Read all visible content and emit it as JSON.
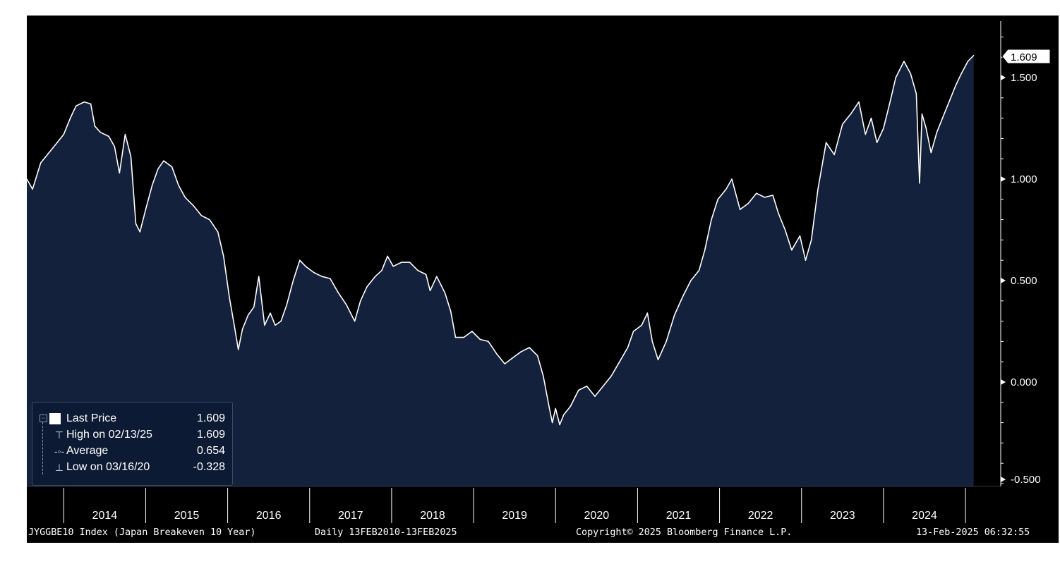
{
  "chart_data": {
    "type": "area",
    "x_labels": [
      "2014",
      "2015",
      "2016",
      "2017",
      "2018",
      "2019",
      "2020",
      "2021",
      "2022",
      "2023",
      "2024"
    ],
    "y_ticks": [
      "1.500",
      "1.000",
      "0.500",
      "0.000",
      "-0.500"
    ],
    "y_tick_values": [
      1.5,
      1.0,
      0.5,
      0.0,
      -0.5
    ],
    "ylim": [
      -0.5,
      1.8
    ],
    "xlim": [
      2013.55,
      2025.12
    ],
    "last_price_tag": "1.609",
    "points": [
      [
        2013.55,
        1.0
      ],
      [
        2013.62,
        0.95
      ],
      [
        2013.72,
        1.08
      ],
      [
        2013.82,
        1.13
      ],
      [
        2013.92,
        1.18
      ],
      [
        2014.0,
        1.22
      ],
      [
        2014.08,
        1.3
      ],
      [
        2014.15,
        1.36
      ],
      [
        2014.25,
        1.38
      ],
      [
        2014.33,
        1.37
      ],
      [
        2014.38,
        1.26
      ],
      [
        2014.45,
        1.23
      ],
      [
        2014.55,
        1.21
      ],
      [
        2014.62,
        1.16
      ],
      [
        2014.68,
        1.03
      ],
      [
        2014.75,
        1.22
      ],
      [
        2014.82,
        1.11
      ],
      [
        2014.88,
        0.78
      ],
      [
        2014.93,
        0.74
      ],
      [
        2015.0,
        0.85
      ],
      [
        2015.08,
        0.97
      ],
      [
        2015.15,
        1.05
      ],
      [
        2015.22,
        1.09
      ],
      [
        2015.32,
        1.06
      ],
      [
        2015.4,
        0.97
      ],
      [
        2015.48,
        0.91
      ],
      [
        2015.58,
        0.87
      ],
      [
        2015.68,
        0.82
      ],
      [
        2015.78,
        0.8
      ],
      [
        2015.88,
        0.74
      ],
      [
        2015.95,
        0.62
      ],
      [
        2016.02,
        0.42
      ],
      [
        2016.08,
        0.28
      ],
      [
        2016.13,
        0.16
      ],
      [
        2016.18,
        0.26
      ],
      [
        2016.25,
        0.33
      ],
      [
        2016.32,
        0.37
      ],
      [
        2016.38,
        0.52
      ],
      [
        2016.45,
        0.28
      ],
      [
        2016.52,
        0.34
      ],
      [
        2016.58,
        0.28
      ],
      [
        2016.65,
        0.3
      ],
      [
        2016.72,
        0.38
      ],
      [
        2016.8,
        0.5
      ],
      [
        2016.88,
        0.6
      ],
      [
        2016.95,
        0.57
      ],
      [
        2017.05,
        0.54
      ],
      [
        2017.15,
        0.52
      ],
      [
        2017.25,
        0.51
      ],
      [
        2017.35,
        0.44
      ],
      [
        2017.45,
        0.38
      ],
      [
        2017.55,
        0.3
      ],
      [
        2017.62,
        0.4
      ],
      [
        2017.7,
        0.47
      ],
      [
        2017.8,
        0.52
      ],
      [
        2017.88,
        0.55
      ],
      [
        2017.95,
        0.62
      ],
      [
        2018.02,
        0.57
      ],
      [
        2018.12,
        0.59
      ],
      [
        2018.22,
        0.59
      ],
      [
        2018.32,
        0.55
      ],
      [
        2018.42,
        0.53
      ],
      [
        2018.47,
        0.45
      ],
      [
        2018.55,
        0.52
      ],
      [
        2018.65,
        0.44
      ],
      [
        2018.72,
        0.35
      ],
      [
        2018.78,
        0.22
      ],
      [
        2018.88,
        0.22
      ],
      [
        2018.98,
        0.25
      ],
      [
        2019.08,
        0.21
      ],
      [
        2019.18,
        0.2
      ],
      [
        2019.28,
        0.14
      ],
      [
        2019.38,
        0.09
      ],
      [
        2019.48,
        0.12
      ],
      [
        2019.58,
        0.15
      ],
      [
        2019.68,
        0.17
      ],
      [
        2019.78,
        0.13
      ],
      [
        2019.85,
        0.03
      ],
      [
        2019.92,
        -0.12
      ],
      [
        2019.96,
        -0.2
      ],
      [
        2020.0,
        -0.13
      ],
      [
        2020.05,
        -0.21
      ],
      [
        2020.1,
        -0.16
      ],
      [
        2020.18,
        -0.12
      ],
      [
        2020.28,
        -0.04
      ],
      [
        2020.38,
        -0.02
      ],
      [
        2020.48,
        -0.07
      ],
      [
        2020.58,
        -0.02
      ],
      [
        2020.68,
        0.03
      ],
      [
        2020.78,
        0.1
      ],
      [
        2020.88,
        0.17
      ],
      [
        2020.95,
        0.25
      ],
      [
        2021.05,
        0.28
      ],
      [
        2021.12,
        0.34
      ],
      [
        2021.18,
        0.2
      ],
      [
        2021.25,
        0.11
      ],
      [
        2021.35,
        0.2
      ],
      [
        2021.45,
        0.33
      ],
      [
        2021.55,
        0.42
      ],
      [
        2021.65,
        0.5
      ],
      [
        2021.75,
        0.55
      ],
      [
        2021.82,
        0.65
      ],
      [
        2021.9,
        0.8
      ],
      [
        2021.98,
        0.9
      ],
      [
        2022.08,
        0.95
      ],
      [
        2022.15,
        1.0
      ],
      [
        2022.25,
        0.85
      ],
      [
        2022.35,
        0.88
      ],
      [
        2022.45,
        0.93
      ],
      [
        2022.55,
        0.91
      ],
      [
        2022.65,
        0.92
      ],
      [
        2022.72,
        0.83
      ],
      [
        2022.8,
        0.75
      ],
      [
        2022.88,
        0.65
      ],
      [
        2022.98,
        0.72
      ],
      [
        2023.05,
        0.6
      ],
      [
        2023.12,
        0.7
      ],
      [
        2023.2,
        0.95
      ],
      [
        2023.3,
        1.18
      ],
      [
        2023.4,
        1.12
      ],
      [
        2023.5,
        1.27
      ],
      [
        2023.6,
        1.32
      ],
      [
        2023.7,
        1.38
      ],
      [
        2023.78,
        1.22
      ],
      [
        2023.85,
        1.3
      ],
      [
        2023.92,
        1.18
      ],
      [
        2024.0,
        1.25
      ],
      [
        2024.08,
        1.38
      ],
      [
        2024.15,
        1.5
      ],
      [
        2024.25,
        1.58
      ],
      [
        2024.33,
        1.52
      ],
      [
        2024.4,
        1.42
      ],
      [
        2024.44,
        0.98
      ],
      [
        2024.47,
        1.32
      ],
      [
        2024.52,
        1.25
      ],
      [
        2024.58,
        1.13
      ],
      [
        2024.65,
        1.23
      ],
      [
        2024.72,
        1.3
      ],
      [
        2024.8,
        1.38
      ],
      [
        2024.88,
        1.46
      ],
      [
        2024.95,
        1.52
      ],
      [
        2025.03,
        1.58
      ],
      [
        2025.1,
        1.609
      ]
    ]
  },
  "legend": {
    "last_price": {
      "label": "Last Price",
      "value": "1.609"
    },
    "high": {
      "label": "High on 02/13/25",
      "value": "1.609"
    },
    "average": {
      "label": "Average",
      "value": "0.654"
    },
    "low": {
      "label": "Low on 03/16/20",
      "value": "-0.328"
    }
  },
  "footer": {
    "ticker": "JYGGBE10 Index (Japan Breakeven 10 Year)",
    "range": "Daily 13FEB2010-13FEB2025",
    "copyright": "Copyright© 2025 Bloomberg Finance L.P.",
    "timestamp": "13-Feb-2025 06:32:55"
  },
  "colors": {
    "fill": "#14213d",
    "line": "#ffffff",
    "background": "#000000"
  }
}
